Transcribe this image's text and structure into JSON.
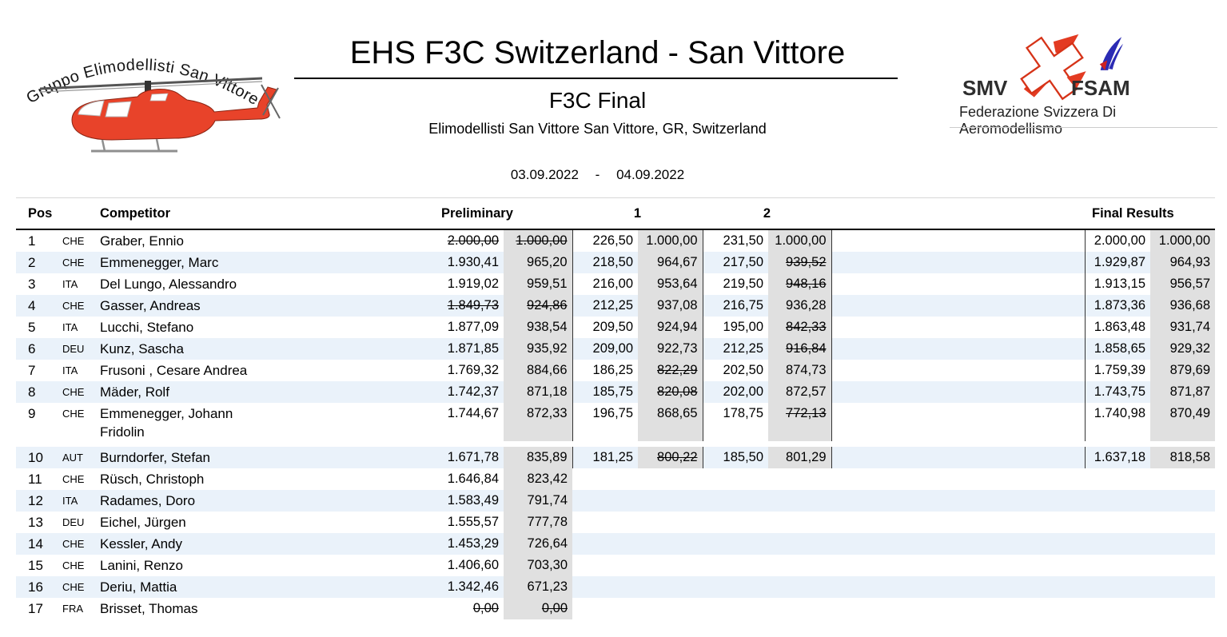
{
  "header": {
    "title": "EHS F3C Switzerland - San Vittore",
    "event": "F3C Final",
    "venue": "Elimodellisti San Vittore San Vittore, GR, Switzerland",
    "date_start": "03.09.2022",
    "date_separator": "-",
    "date_end": "04.09.2022"
  },
  "left_logo": {
    "arc_text": "Gruppo Elimodellisti San Vittore",
    "helicopter_color": "#e8432a"
  },
  "right_logo": {
    "smv_label": "SMV",
    "fsam_label": "FSAM",
    "federation_label": "Federazione Svizzera Di Aeromodellismo"
  },
  "table": {
    "columns": {
      "pos": "Pos",
      "competitor": "Competitor",
      "preliminary": "Preliminary",
      "round1": "1",
      "round2": "2",
      "final_results": "Final Results"
    },
    "colors": {
      "row_alternate": "#eaf2fa",
      "points_cell": "#e0e0e0",
      "separator": "#333333"
    },
    "rows": [
      {
        "pos": "1",
        "country": "CHE",
        "name": "Graber, Ennio",
        "prelim": {
          "score": "2.000,00",
          "points": "1.000,00",
          "score_struck": true,
          "points_struck": true
        },
        "round1": {
          "score": "226,50",
          "points": "1.000,00"
        },
        "round2": {
          "score": "231,50",
          "points": "1.000,00"
        },
        "final": {
          "score": "2.000,00",
          "points": "1.000,00"
        }
      },
      {
        "pos": "2",
        "country": "CHE",
        "name": "Emmenegger, Marc",
        "prelim": {
          "score": "1.930,41",
          "points": "965,20"
        },
        "round1": {
          "score": "218,50",
          "points": "964,67"
        },
        "round2": {
          "score": "217,50",
          "points": "939,52",
          "points_struck": true
        },
        "final": {
          "score": "1.929,87",
          "points": "964,93"
        }
      },
      {
        "pos": "3",
        "country": "ITA",
        "name": "Del Lungo, Alessandro",
        "prelim": {
          "score": "1.919,02",
          "points": "959,51"
        },
        "round1": {
          "score": "216,00",
          "points": "953,64"
        },
        "round2": {
          "score": "219,50",
          "points": "948,16",
          "points_struck": true
        },
        "final": {
          "score": "1.913,15",
          "points": "956,57"
        }
      },
      {
        "pos": "4",
        "country": "CHE",
        "name": "Gasser, Andreas",
        "prelim": {
          "score": "1.849,73",
          "points": "924,86",
          "score_struck": true,
          "points_struck": true
        },
        "round1": {
          "score": "212,25",
          "points": "937,08"
        },
        "round2": {
          "score": "216,75",
          "points": "936,28"
        },
        "final": {
          "score": "1.873,36",
          "points": "936,68"
        }
      },
      {
        "pos": "5",
        "country": "ITA",
        "name": "Lucchi, Stefano",
        "prelim": {
          "score": "1.877,09",
          "points": "938,54"
        },
        "round1": {
          "score": "209,50",
          "points": "924,94"
        },
        "round2": {
          "score": "195,00",
          "points": "842,33",
          "points_struck": true
        },
        "final": {
          "score": "1.863,48",
          "points": "931,74"
        }
      },
      {
        "pos": "6",
        "country": "DEU",
        "name": "Kunz, Sascha",
        "prelim": {
          "score": "1.871,85",
          "points": "935,92"
        },
        "round1": {
          "score": "209,00",
          "points": "922,73"
        },
        "round2": {
          "score": "212,25",
          "points": "916,84",
          "points_struck": true
        },
        "final": {
          "score": "1.858,65",
          "points": "929,32"
        }
      },
      {
        "pos": "7",
        "country": "ITA",
        "name": "Frusoni , Cesare Andrea",
        "prelim": {
          "score": "1.769,32",
          "points": "884,66"
        },
        "round1": {
          "score": "186,25",
          "points": "822,29",
          "points_struck": true
        },
        "round2": {
          "score": "202,50",
          "points": "874,73"
        },
        "final": {
          "score": "1.759,39",
          "points": "879,69"
        }
      },
      {
        "pos": "8",
        "country": "CHE",
        "name": "Mäder, Rolf",
        "prelim": {
          "score": "1.742,37",
          "points": "871,18"
        },
        "round1": {
          "score": "185,75",
          "points": "820,08",
          "points_struck": true
        },
        "round2": {
          "score": "202,00",
          "points": "872,57"
        },
        "final": {
          "score": "1.743,75",
          "points": "871,87"
        }
      },
      {
        "pos": "9",
        "country": "CHE",
        "name": "Emmenegger, Johann\nFridolin",
        "prelim": {
          "score": "1.744,67",
          "points": "872,33"
        },
        "round1": {
          "score": "196,75",
          "points": "868,65"
        },
        "round2": {
          "score": "178,75",
          "points": "772,13",
          "points_struck": true
        },
        "final": {
          "score": "1.740,98",
          "points": "870,49"
        }
      },
      {
        "pos": "10",
        "country": "AUT",
        "name": "Burndorfer, Stefan",
        "gap_before": true,
        "prelim": {
          "score": "1.671,78",
          "points": "835,89"
        },
        "round1": {
          "score": "181,25",
          "points": "800,22",
          "points_struck": true
        },
        "round2": {
          "score": "185,50",
          "points": "801,29"
        },
        "final": {
          "score": "1.637,18",
          "points": "818,58"
        }
      },
      {
        "pos": "11",
        "country": "CHE",
        "name": "Rüsch, Christoph",
        "prelim": {
          "score": "1.646,84",
          "points": "823,42"
        }
      },
      {
        "pos": "12",
        "country": "ITA",
        "name": "Radames, Doro",
        "prelim": {
          "score": "1.583,49",
          "points": "791,74"
        }
      },
      {
        "pos": "13",
        "country": "DEU",
        "name": "Eichel, Jürgen",
        "prelim": {
          "score": "1.555,57",
          "points": "777,78"
        }
      },
      {
        "pos": "14",
        "country": "CHE",
        "name": "Kessler, Andy",
        "prelim": {
          "score": "1.453,29",
          "points": "726,64"
        }
      },
      {
        "pos": "15",
        "country": "CHE",
        "name": "Lanini, Renzo",
        "prelim": {
          "score": "1.406,60",
          "points": "703,30"
        }
      },
      {
        "pos": "16",
        "country": "CHE",
        "name": "Deriu, Mattia",
        "prelim": {
          "score": "1.342,46",
          "points": "671,23"
        }
      },
      {
        "pos": "17",
        "country": "FRA",
        "name": "Brisset, Thomas",
        "prelim": {
          "score": "0,00",
          "points": "0,00",
          "score_struck": true,
          "points_struck": true
        }
      }
    ]
  }
}
